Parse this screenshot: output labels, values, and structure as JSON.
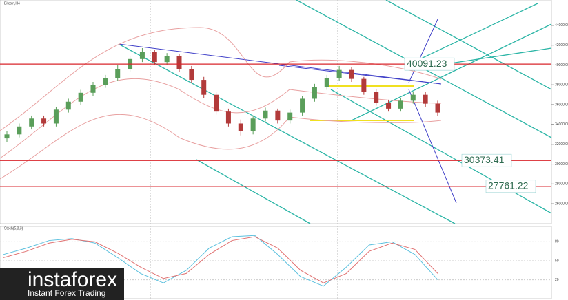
{
  "chart_data": [
    {
      "type": "candlestick",
      "title": "Bitcoin,H4",
      "open": [
        32600,
        33000,
        33800,
        34600,
        34100,
        35500,
        36300,
        37200,
        38000,
        38700,
        39600,
        40600,
        41300,
        40300,
        40900,
        39600,
        38500,
        37000,
        35300,
        34100,
        33300,
        34600,
        35400,
        34400,
        35200,
        36600,
        37800,
        38700,
        39500,
        38600,
        37300,
        36200,
        35600,
        36400,
        37000,
        36100
      ],
      "high": [
        33300,
        34100,
        34900,
        34900,
        35800,
        36600,
        37500,
        38300,
        39000,
        40000,
        40900,
        41700,
        41500,
        41200,
        41100,
        39900,
        38800,
        37300,
        35600,
        34500,
        34900,
        35700,
        35600,
        35500,
        36900,
        38100,
        39000,
        39900,
        39800,
        38800,
        37600,
        36500,
        36700,
        37300,
        37300,
        36400
      ],
      "low": [
        32200,
        32700,
        33500,
        33800,
        33800,
        35200,
        36000,
        36900,
        37700,
        38400,
        39300,
        40300,
        40000,
        40000,
        39300,
        38200,
        36700,
        35000,
        33800,
        32900,
        33000,
        34300,
        34100,
        34100,
        34900,
        36300,
        37500,
        38400,
        38300,
        37000,
        35900,
        35300,
        35300,
        36100,
        35800,
        34900
      ],
      "close": [
        33000,
        33800,
        34600,
        34100,
        35500,
        36300,
        37200,
        38000,
        38700,
        39600,
        40600,
        41300,
        40300,
        40900,
        39600,
        38500,
        37000,
        35300,
        34100,
        33300,
        34600,
        35400,
        34400,
        35200,
        36600,
        37800,
        38700,
        39500,
        38600,
        37300,
        36200,
        35600,
        36400,
        37000,
        36100,
        35200
      ],
      "up_color": "#5a9e5a",
      "down_color": "#b23a3a",
      "ylim": [
        24000,
        46000
      ],
      "yticks": [
        {
          "value": 26000,
          "label": "26000.00"
        },
        {
          "value": 28000,
          "label": "28000.00"
        },
        {
          "value": 30000,
          "label": "30000.00"
        },
        {
          "value": 32000,
          "label": "32000.00"
        },
        {
          "value": 34000,
          "label": "34000.00"
        },
        {
          "value": 36000,
          "label": "36000.00"
        },
        {
          "value": 38000,
          "label": "38000.00"
        },
        {
          "value": 40000,
          "label": "40000.00"
        },
        {
          "value": 42000,
          "label": "42000.00"
        },
        {
          "value": 44000,
          "label": "44000.00"
        }
      ],
      "levels": [
        40091.23,
        30373.41,
        27761.22
      ],
      "level_color": "#d9262c"
    },
    {
      "type": "line",
      "title": "Stoch(5,3,3)",
      "series": [
        {
          "name": "%K",
          "color": "#5bc0de",
          "values": [
            60,
            70,
            82,
            85,
            78,
            55,
            30,
            15,
            35,
            70,
            88,
            90,
            60,
            25,
            10,
            40,
            75,
            80,
            60,
            20
          ]
        },
        {
          "name": "%D",
          "color": "#e07070",
          "values": [
            55,
            65,
            78,
            84,
            80,
            62,
            40,
            22,
            30,
            60,
            82,
            88,
            70,
            35,
            15,
            30,
            65,
            78,
            68,
            30
          ]
        }
      ],
      "ylim": [
        0,
        100
      ],
      "yticks": [
        20,
        50,
        80
      ]
    }
  ],
  "logo": {
    "brand": "instaforex",
    "tagline": "Instant Forex Trading"
  }
}
